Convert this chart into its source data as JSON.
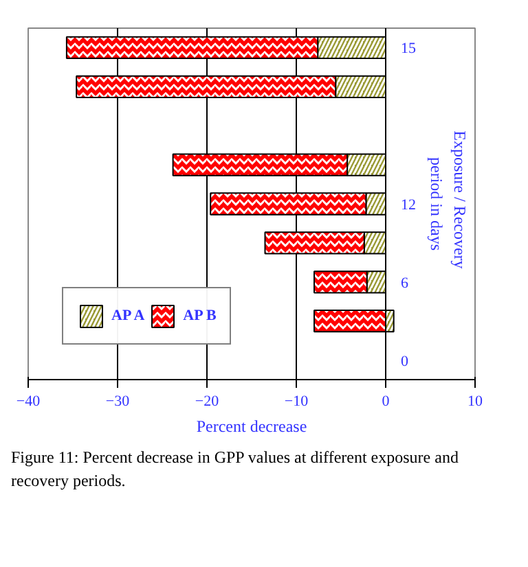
{
  "chart_data": {
    "type": "bar",
    "orientation": "horizontal",
    "stacked": true,
    "categories": [
      "15",
      null,
      null,
      null,
      "12",
      null,
      "6",
      null,
      "0"
    ],
    "series": [
      {
        "name": "AP A",
        "color": "#999933",
        "values": [
          -7.6,
          -5.6,
          null,
          -4.3,
          -2.2,
          -2.4,
          -2.1,
          0.9,
          null
        ]
      },
      {
        "name": "AP B",
        "color": "#ff0000",
        "values": [
          -28.1,
          -29.0,
          null,
          -19.5,
          -17.4,
          -11.1,
          -5.9,
          -8.0,
          null
        ]
      }
    ],
    "xlabel": "Percent decrease",
    "ylabel": "Exposure  /  Recovery\nperiod in days",
    "xlim": [
      -40,
      10
    ],
    "xticks": [
      -40,
      -30,
      -20,
      -10,
      0,
      10
    ],
    "grid": "x",
    "legend": "bottom left",
    "annotations": [
      "Figure 11: Percent decrease in GPP values at different exposure and recovery periods."
    ]
  }
}
